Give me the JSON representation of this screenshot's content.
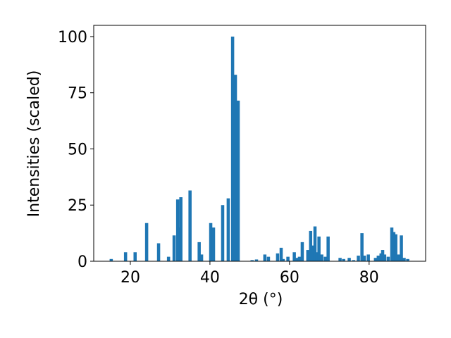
{
  "chart_data": {
    "type": "bar",
    "xlabel": "2θ (°)",
    "ylabel": "Intensities (scaled)",
    "color": "#1f77b4",
    "bar_width": 0.8,
    "x": [
      15.2,
      18.8,
      21.2,
      24.1,
      27.1,
      29.6,
      31.0,
      31.9,
      32.2,
      32.7,
      35.0,
      37.3,
      37.9,
      40.2,
      40.9,
      43.2,
      44.6,
      45.7,
      46.4,
      47.1,
      50.6,
      51.7,
      53.8,
      54.7,
      57.0,
      57.9,
      58.4,
      59.6,
      61.2,
      61.8,
      62.5,
      63.2,
      64.6,
      65.3,
      65.8,
      66.4,
      66.9,
      67.4,
      68.1,
      69.0,
      69.7,
      72.7,
      73.6,
      75.0,
      76.1,
      77.3,
      78.2,
      78.8,
      79.8,
      81.6,
      82.3,
      83.0,
      83.4,
      83.9,
      84.8,
      85.7,
      86.2,
      86.7,
      87.4,
      88.1,
      88.8,
      89.7
    ],
    "values": [
      1,
      4,
      4,
      17,
      8,
      2,
      11.5,
      27.5,
      15,
      28.5,
      31.5,
      8.5,
      3,
      17,
      15,
      25,
      28,
      100,
      83,
      71.5,
      0.5,
      0.8,
      3,
      2,
      3.5,
      6,
      1,
      2,
      4,
      1.5,
      2,
      8.5,
      5,
      13.5,
      7,
      15.5,
      4,
      11,
      3,
      2,
      11,
      1.5,
      1,
      1.5,
      0.5,
      2.5,
      12.5,
      2.5,
      3,
      1.5,
      2.5,
      3.5,
      5,
      3,
      2,
      15,
      13,
      12,
      3,
      11.5,
      1.5,
      1
    ],
    "xlim": [
      10.8,
      94.2
    ],
    "ylim": [
      0,
      105
    ],
    "xticks": [
      20,
      40,
      60,
      80
    ],
    "yticks": [
      0,
      25,
      50,
      75,
      100
    ]
  }
}
